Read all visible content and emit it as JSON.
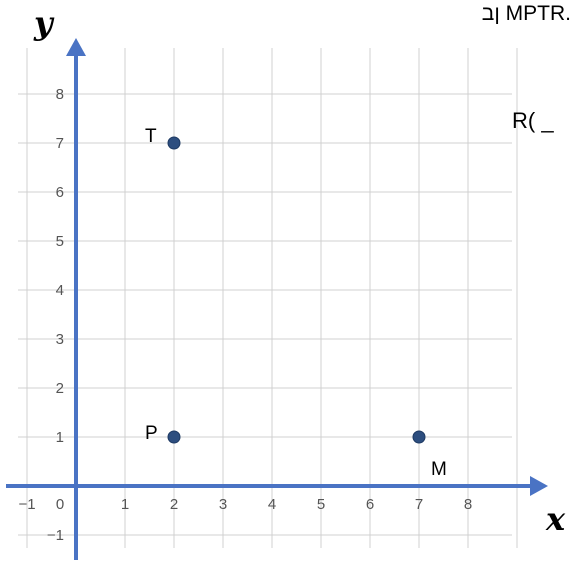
{
  "snippets": {
    "top_text": ".MPTR ןב",
    "r_prompt": "R( _"
  },
  "chart_data": {
    "type": "scatter",
    "xlabel": "x",
    "ylabel": "y",
    "xlim": [
      -1.5,
      9.5
    ],
    "ylim": [
      -1.5,
      9
    ],
    "grid": true,
    "x_ticks": [
      -1,
      0,
      1,
      2,
      3,
      4,
      5,
      6,
      7,
      8
    ],
    "y_ticks": [
      -1,
      1,
      2,
      3,
      4,
      5,
      6,
      7,
      8
    ],
    "points": [
      {
        "label": "T",
        "x": 2,
        "y": 7
      },
      {
        "label": "P",
        "x": 2,
        "y": 1
      },
      {
        "label": "M",
        "x": 7,
        "y": 1
      }
    ],
    "colors": {
      "axis": "#4a73c4",
      "grid": "#d0d0d0",
      "point": "#2d4e7f",
      "tick_label": "#555555"
    }
  }
}
